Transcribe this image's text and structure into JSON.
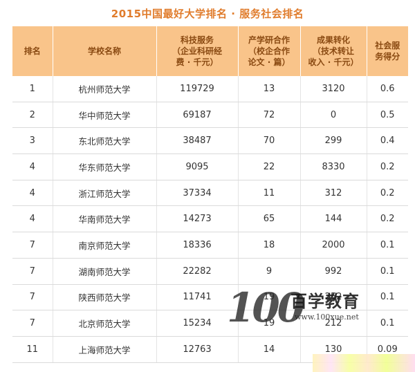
{
  "title": "2015中国最好大学排名 · 服务社会排名",
  "headers": {
    "rank": "排名",
    "school": "学校名称",
    "funding": [
      "科技服务",
      "（企业科研经",
      "费 · 千元）"
    ],
    "papers": [
      "产学研合作",
      "（校企合作",
      "论文 · 篇）"
    ],
    "income": [
      "成果转化",
      "（技术转让",
      "收入 · 千元）"
    ],
    "score": [
      "社会服",
      "务得分"
    ]
  },
  "rows": [
    {
      "rank": "1",
      "school": "杭州师范大学",
      "funding": "119729",
      "papers": "13",
      "income": "3120",
      "score": "0.6"
    },
    {
      "rank": "2",
      "school": "华中师范大学",
      "funding": "69187",
      "papers": "72",
      "income": "0",
      "score": "0.5"
    },
    {
      "rank": "3",
      "school": "东北师范大学",
      "funding": "38487",
      "papers": "70",
      "income": "299",
      "score": "0.4"
    },
    {
      "rank": "4",
      "school": "华东师范大学",
      "funding": "9095",
      "papers": "22",
      "income": "8330",
      "score": "0.2"
    },
    {
      "rank": "4",
      "school": "浙江师范大学",
      "funding": "37334",
      "papers": "11",
      "income": "312",
      "score": "0.2"
    },
    {
      "rank": "4",
      "school": "华南师范大学",
      "funding": "14273",
      "papers": "65",
      "income": "144",
      "score": "0.2"
    },
    {
      "rank": "7",
      "school": "南京师范大学",
      "funding": "18336",
      "papers": "18",
      "income": "2000",
      "score": "0.1"
    },
    {
      "rank": "7",
      "school": "湖南师范大学",
      "funding": "22282",
      "papers": "9",
      "income": "992",
      "score": "0.1"
    },
    {
      "rank": "7",
      "school": "陕西师范大学",
      "funding": "11741",
      "papers": "19",
      "income": "252",
      "score": "0.1"
    },
    {
      "rank": "7",
      "school": "北京师范大学",
      "funding": "15234",
      "papers": "19",
      "income": "212",
      "score": "0.1"
    },
    {
      "rank": "11",
      "school": "上海师范大学",
      "funding": "12763",
      "papers": "14",
      "income": "130",
      "score": "0.09"
    }
  ],
  "watermark": {
    "logo": "100",
    "brand": "百学教育",
    "url": "www.100xue.net"
  },
  "colors": {
    "title": "#e07c2c",
    "header_bg": "#f9c48a",
    "header_text": "#8a4a12"
  }
}
